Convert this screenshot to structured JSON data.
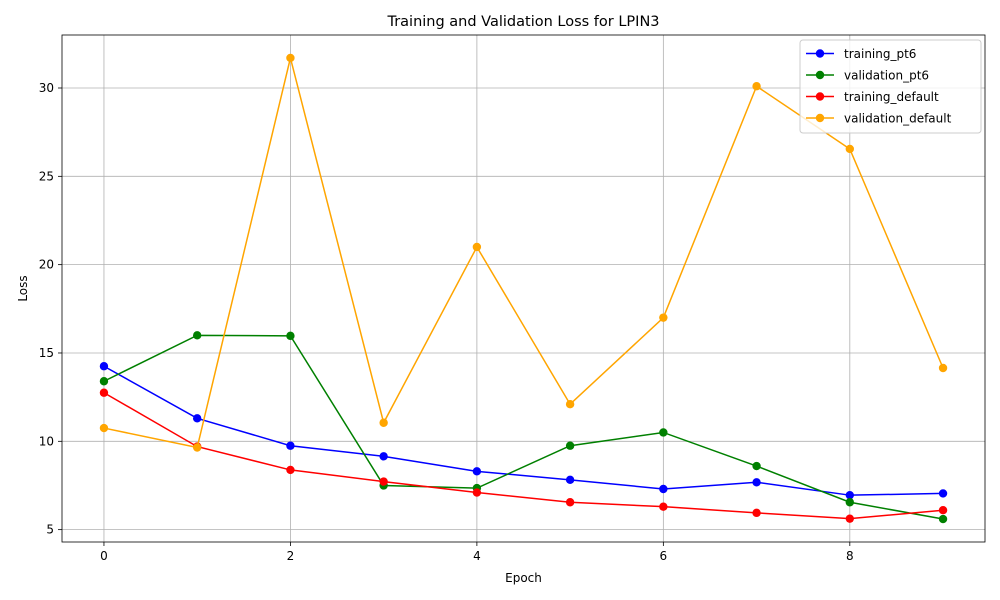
{
  "chart_data": {
    "type": "line",
    "title": "Training and Validation Loss for LPIN3",
    "xlabel": "Epoch",
    "ylabel": "Loss",
    "x": [
      0,
      1,
      2,
      3,
      4,
      5,
      6,
      7,
      8,
      9
    ],
    "xlim": [
      -0.45,
      9.45
    ],
    "ylim": [
      4.3,
      33.0
    ],
    "xticks": [
      0,
      2,
      4,
      6,
      8
    ],
    "yticks": [
      5,
      10,
      15,
      20,
      25,
      30
    ],
    "grid": true,
    "legend_position": "top-right",
    "series": [
      {
        "name": "training_pt6",
        "color": "#0000ff",
        "values": [
          14.25,
          11.3,
          9.75,
          9.15,
          8.3,
          7.82,
          7.3,
          7.68,
          6.95,
          7.05
        ]
      },
      {
        "name": "validation_pt6",
        "color": "#008000",
        "values": [
          13.4,
          16.0,
          15.97,
          7.5,
          7.35,
          9.75,
          10.5,
          8.6,
          6.55,
          5.6
        ]
      },
      {
        "name": "training_default",
        "color": "#ff0000",
        "values": [
          12.75,
          9.7,
          8.38,
          7.72,
          7.1,
          6.55,
          6.3,
          5.95,
          5.62,
          6.1
        ]
      },
      {
        "name": "validation_default",
        "color": "#ffa500",
        "values": [
          10.75,
          9.65,
          31.7,
          11.05,
          21.0,
          12.1,
          17.0,
          30.1,
          26.55,
          14.15
        ]
      }
    ]
  }
}
